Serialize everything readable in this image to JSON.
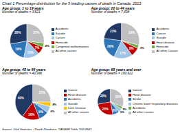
{
  "title": "Chart 1 Percentage distribution for the 5 leading causes of death in Canada, 2013",
  "source": "Source: Vital Statistics - Death Database, CANSIM Table 102-0561.",
  "chart_data": [
    {
      "type": "pie",
      "title": "Age group: 1 to 19 years",
      "subtitle": "Number of deaths = 3,621",
      "categories": [
        "Accidents",
        "Suicide",
        "Cancer",
        "Homicide",
        "Congenital malformations",
        "All other causes"
      ],
      "values": [
        28,
        19,
        15,
        7,
        4,
        27
      ],
      "value_labels": [
        "28%",
        "19%",
        "15%",
        "7%",
        "4%",
        "27%"
      ],
      "colors": [
        "#1f3864",
        "#2e75b6",
        "#9dc3e6",
        "#c00000",
        "#70ad47",
        "#bfbfbf"
      ],
      "data_labels": true,
      "legend": "right"
    },
    {
      "type": "pie",
      "title": "Age group: 20 to 44 years",
      "subtitle": "Number of deaths = 7,408",
      "categories": [
        "Accidents",
        "Cancer",
        "Suicide",
        "Heart disease",
        "Homicide",
        "All other Causes"
      ],
      "values": [
        23,
        20,
        17,
        8,
        3,
        29
      ],
      "value_labels": [
        "23%",
        "20%",
        "17%",
        "8%",
        "3%",
        "29%"
      ],
      "colors": [
        "#1f3864",
        "#2e75b6",
        "#9dc3e6",
        "#c00000",
        "#70ad47",
        "#bfbfbf"
      ],
      "data_labels": true,
      "legend": "right"
    },
    {
      "type": "pie",
      "title": "Age group: 45 to 64 years",
      "subtitle": "Number of deaths = 40,996",
      "categories": [
        "Cancer",
        "Heart disease",
        "Accidents",
        "Suicide",
        "Liver Disease",
        "All other causes"
      ],
      "values": [
        40,
        16,
        9,
        6,
        4,
        25
      ],
      "value_labels": [
        "40%",
        "16%",
        "9%",
        "6%",
        "4%",
        "25%"
      ],
      "colors": [
        "#1f3864",
        "#c00000",
        "#2e75b6",
        "#9dc3e6",
        "#ffc000",
        "#bfbfbf"
      ],
      "data_labels": true,
      "legend": "right"
    },
    {
      "type": "pie",
      "title": "Age group: 65 years and over",
      "subtitle": "Number of deaths = 190,622",
      "categories": [
        "Cancer",
        "Heart disease",
        "Stroke",
        "Chronic lower respiratory diseases",
        "Accidents",
        "All other causes"
      ],
      "values": [
        28,
        25,
        8,
        5,
        3,
        31
      ],
      "value_labels": [
        "28%",
        "25%",
        "8%",
        "5%",
        "3%",
        "31%"
      ],
      "colors": [
        "#1f3864",
        "#c00000",
        "#2e75b6",
        "#9dc3e6",
        "#70ad47",
        "#bfbfbf"
      ],
      "data_labels": true,
      "legend": "right"
    }
  ]
}
